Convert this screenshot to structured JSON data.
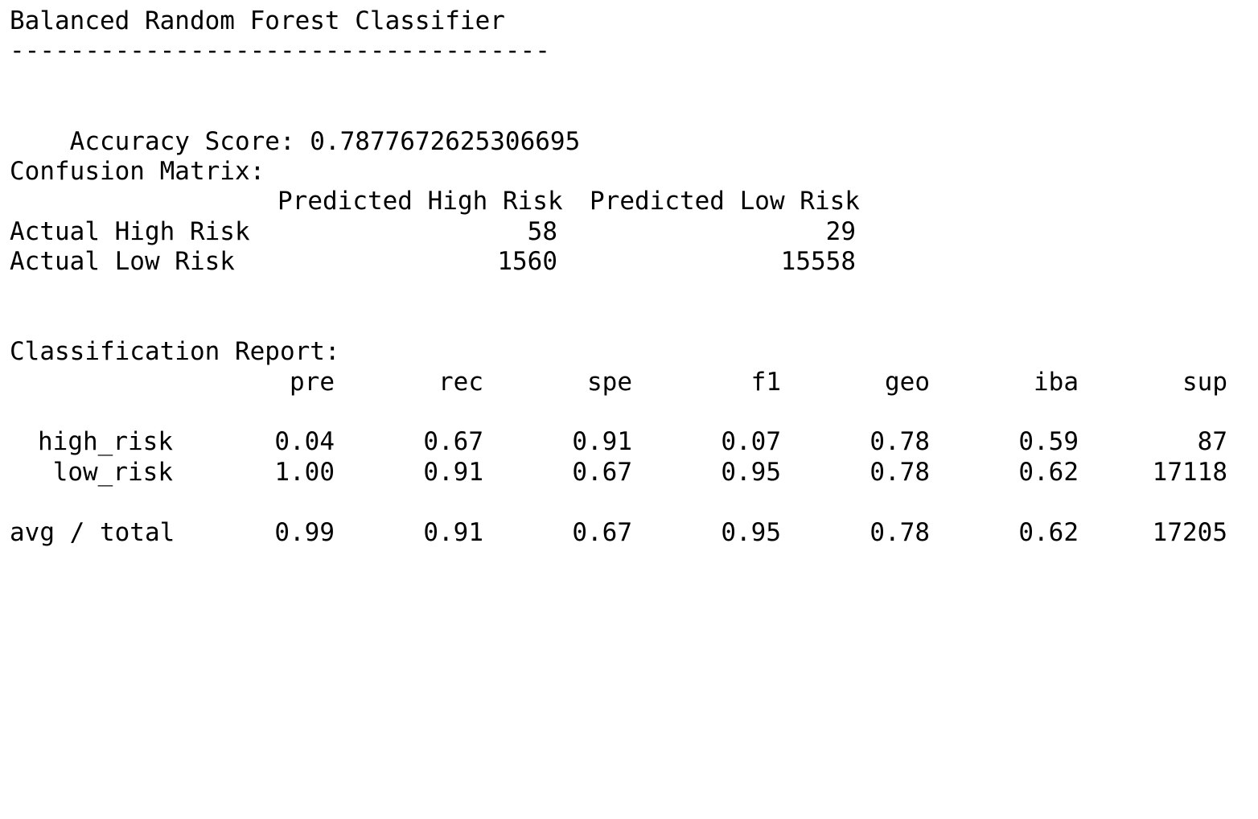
{
  "title": "Balanced Random Forest Classifier",
  "separator": "------------------------------------",
  "accuracy": {
    "label": "Accuracy Score:",
    "value": "0.7877672625306695"
  },
  "confusion_matrix": {
    "heading": "Confusion Matrix:",
    "columns": [
      "Predicted High Risk",
      "Predicted Low Risk"
    ],
    "rows": [
      {
        "label": "Actual High Risk",
        "values": [
          "58",
          "29"
        ]
      },
      {
        "label": "Actual Low Risk",
        "values": [
          "1560",
          "15558"
        ]
      }
    ]
  },
  "classification_report": {
    "heading": "Classification Report:",
    "columns": [
      "pre",
      "rec",
      "spe",
      "f1",
      "geo",
      "iba",
      "sup"
    ],
    "rows": [
      {
        "label": "high_risk",
        "values": [
          "0.04",
          "0.67",
          "0.91",
          "0.07",
          "0.78",
          "0.59",
          "87"
        ]
      },
      {
        "label": "low_risk",
        "values": [
          "1.00",
          "0.91",
          "0.67",
          "0.95",
          "0.78",
          "0.62",
          "17118"
        ]
      }
    ],
    "total": {
      "label": "avg / total",
      "values": [
        "0.99",
        "0.91",
        "0.67",
        "0.95",
        "0.78",
        "0.62",
        "17205"
      ]
    }
  }
}
